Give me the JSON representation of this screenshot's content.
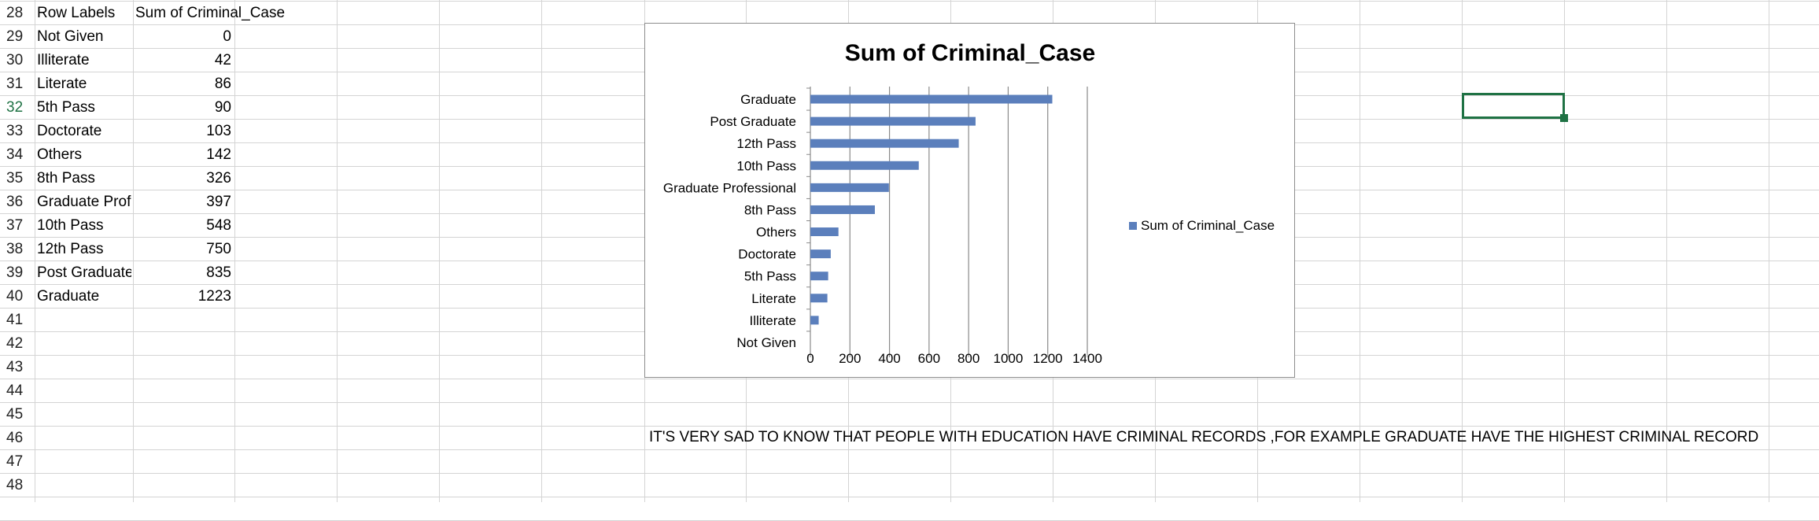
{
  "sheet": {
    "row_numbers": [
      "28",
      "29",
      "30",
      "31",
      "32",
      "33",
      "34",
      "35",
      "36",
      "37",
      "38",
      "39",
      "40",
      "41",
      "42",
      "43",
      "44",
      "45",
      "46",
      "47",
      "48"
    ],
    "active_row": "32",
    "header": {
      "col_a": "Row Labels",
      "col_b": "Sum of Criminal_Case"
    },
    "rows": [
      {
        "label": "Not Given",
        "value": "0"
      },
      {
        "label": "Illiterate",
        "value": "42"
      },
      {
        "label": "Literate",
        "value": "86"
      },
      {
        "label": "5th Pass",
        "value": "90"
      },
      {
        "label": "Doctorate",
        "value": "103"
      },
      {
        "label": "Others",
        "value": "142"
      },
      {
        "label": "8th Pass",
        "value": "326"
      },
      {
        "label": "Graduate Professional",
        "value": "397"
      },
      {
        "label": "10th Pass",
        "value": "548"
      },
      {
        "label": "12th Pass",
        "value": "750"
      },
      {
        "label": "Post Graduate",
        "value": "835"
      },
      {
        "label": "Graduate",
        "value": "1223"
      }
    ],
    "note": "IT'S VERY SAD TO KNOW THAT PEOPLE WITH EDUCATION HAVE CRIMINAL RECORDS ,FOR EXAMPLE GRADUATE HAVE THE HIGHEST CRIMINAL RECORD",
    "colors": {
      "grid": "#d4d4d4",
      "selection": "#1f7244",
      "active_row_number": "#1f7244"
    }
  },
  "chart_data": {
    "type": "bar",
    "orientation": "horizontal",
    "title": "Sum of Criminal_Case",
    "categories": [
      "Not Given",
      "Illiterate",
      "Literate",
      "5th Pass",
      "Doctorate",
      "Others",
      "8th Pass",
      "Graduate Professional",
      "10th Pass",
      "12th Pass",
      "Post Graduate",
      "Graduate"
    ],
    "series": [
      {
        "name": "Sum of Criminal_Case",
        "values": [
          0,
          42,
          86,
          90,
          103,
          142,
          326,
          397,
          548,
          750,
          835,
          1223
        ]
      }
    ],
    "xlim": [
      0,
      1400
    ],
    "x_ticks": [
      0,
      200,
      400,
      600,
      800,
      1000,
      1200,
      1400
    ],
    "grid": "vertical",
    "legend": "right",
    "bar_color": "#5b7fbc"
  }
}
